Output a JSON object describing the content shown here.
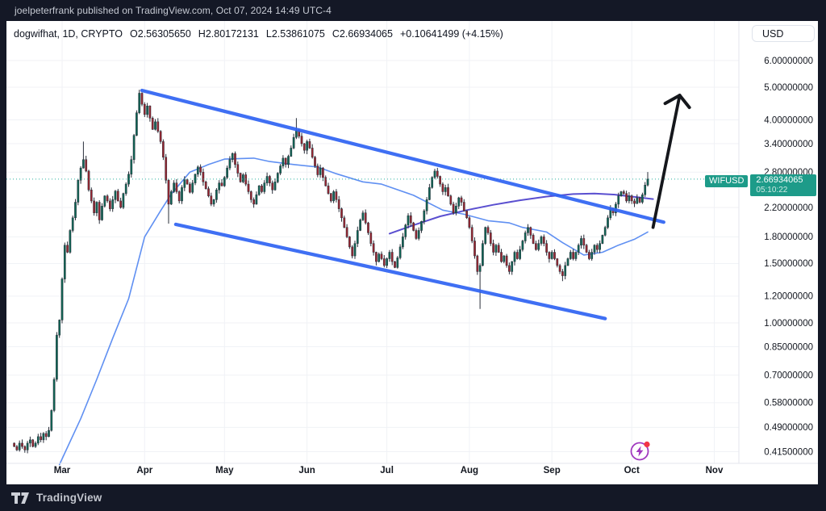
{
  "attribution_bar": {
    "text": "joelpeterfrank published on TradingView.com, Oct 07, 2024 14:49 UTC-4"
  },
  "header": {
    "symbol_text": "dogwifhat, 1D, CRYPTO",
    "ohlc": {
      "open": "O2.56305650",
      "high": "H2.80172131",
      "low": "L2.53861075",
      "close": "C2.66934065",
      "change": "+0.10641499 (+4.15%)"
    }
  },
  "currency_button": {
    "label": "USD"
  },
  "price_label": {
    "symbol": "WIFUSD",
    "price": "2.66934065",
    "countdown": "05:10:22"
  },
  "footer": {
    "brand": "TradingView"
  },
  "colors": {
    "frame": "#141826",
    "panel": "#ffffff",
    "grid": "#f0f2f6",
    "separator": "#e3e6ee",
    "axis_text": "#12161f",
    "up": "#0e6655",
    "down": "#9a2530",
    "wick": "#2a2f3a",
    "trendline": "#2f63f3",
    "ma_fast": "#6090f2",
    "ma_slow": "#5a4fd0",
    "price_line": "#2ab0a0",
    "label_bg": "#1d9b89",
    "arrow": "#15171c",
    "flash_purple": "#a13ac0",
    "flash_red": "#f23645"
  },
  "chart_data": {
    "type": "candlestick",
    "symbol": "WIFUSD",
    "timeframe": "1D",
    "scale": "logarithmic",
    "grid": true,
    "y_axis": {
      "side": "right",
      "ticks": [
        {
          "label": "6.00000000",
          "value": 6.0
        },
        {
          "label": "5.00000000",
          "value": 5.0
        },
        {
          "label": "4.00000000",
          "value": 4.0
        },
        {
          "label": "3.40000000",
          "value": 3.4
        },
        {
          "label": "2.80000000",
          "value": 2.8
        },
        {
          "label": "2.20000000",
          "value": 2.2
        },
        {
          "label": "1.80000000",
          "value": 1.8
        },
        {
          "label": "1.50000000",
          "value": 1.5
        },
        {
          "label": "1.20000000",
          "value": 1.2
        },
        {
          "label": "1.00000000",
          "value": 1.0
        },
        {
          "label": "0.85000000",
          "value": 0.85
        },
        {
          "label": "0.70000000",
          "value": 0.7
        },
        {
          "label": "0.58000000",
          "value": 0.58
        },
        {
          "label": "0.49000000",
          "value": 0.49
        },
        {
          "label": "0.41500000",
          "value": 0.415
        }
      ]
    },
    "x_axis": {
      "months": [
        {
          "label": "Mar",
          "idx": 18
        },
        {
          "label": "Apr",
          "idx": 49
        },
        {
          "label": "May",
          "idx": 79
        },
        {
          "label": "Jun",
          "idx": 110
        },
        {
          "label": "Jul",
          "idx": 140
        },
        {
          "label": "Aug",
          "idx": 171
        },
        {
          "label": "Sep",
          "idx": 202
        },
        {
          "label": "Oct",
          "idx": 232
        },
        {
          "label": "Nov",
          "idx": 263
        }
      ]
    },
    "last_ohlc": {
      "open": 2.5630565,
      "high": 2.80172131,
      "low": 2.53861075,
      "close": 2.66934065,
      "change": 0.10641499,
      "change_pct": 4.15
    },
    "price_line_value": 2.66934065,
    "closes": [
      0.43,
      0.42,
      0.44,
      0.43,
      0.42,
      0.44,
      0.45,
      0.43,
      0.44,
      0.46,
      0.45,
      0.47,
      0.46,
      0.48,
      0.55,
      0.68,
      0.92,
      1.02,
      1.35,
      1.7,
      1.62,
      1.88,
      2.05,
      2.28,
      2.65,
      2.88,
      3.05,
      2.82,
      2.48,
      2.3,
      2.12,
      2.28,
      2.02,
      2.22,
      2.38,
      2.3,
      2.18,
      2.32,
      2.46,
      2.3,
      2.2,
      2.42,
      2.58,
      2.76,
      3.05,
      3.6,
      4.2,
      4.8,
      4.45,
      4.15,
      4.4,
      4.05,
      3.75,
      3.95,
      3.7,
      3.45,
      3.1,
      2.65,
      2.25,
      2.45,
      2.6,
      2.45,
      2.3,
      2.52,
      2.66,
      2.58,
      2.44,
      2.6,
      2.76,
      2.9,
      2.8,
      2.62,
      2.5,
      2.38,
      2.25,
      2.32,
      2.48,
      2.6,
      2.55,
      2.7,
      2.88,
      3.05,
      3.18,
      2.95,
      2.78,
      2.62,
      2.75,
      2.58,
      2.45,
      2.32,
      2.25,
      2.4,
      2.55,
      2.45,
      2.6,
      2.72,
      2.6,
      2.48,
      2.62,
      2.78,
      2.92,
      3.08,
      2.95,
      3.12,
      3.3,
      3.55,
      3.72,
      3.58,
      3.4,
      3.25,
      3.45,
      3.3,
      3.1,
      2.92,
      2.75,
      2.88,
      2.7,
      2.55,
      2.42,
      2.3,
      2.45,
      2.32,
      2.18,
      2.05,
      1.92,
      1.8,
      1.68,
      1.58,
      1.72,
      1.88,
      2.02,
      2.12,
      1.98,
      1.85,
      1.72,
      1.62,
      1.52,
      1.6,
      1.55,
      1.48,
      1.55,
      1.62,
      1.52,
      1.46,
      1.56,
      1.68,
      1.8,
      1.95,
      2.08,
      1.98,
      1.88,
      1.78,
      1.88,
      2.0,
      2.15,
      2.32,
      2.52,
      2.7,
      2.82,
      2.72,
      2.58,
      2.45,
      2.52,
      2.38,
      2.25,
      2.12,
      2.22,
      2.35,
      2.28,
      2.15,
      2.05,
      1.92,
      1.75,
      1.58,
      1.42,
      1.48,
      1.72,
      1.92,
      1.85,
      1.72,
      1.62,
      1.7,
      1.62,
      1.52,
      1.58,
      1.48,
      1.42,
      1.52,
      1.62,
      1.55,
      1.65,
      1.75,
      1.85,
      1.92,
      1.82,
      1.72,
      1.65,
      1.72,
      1.8,
      1.72,
      1.62,
      1.55,
      1.62,
      1.55,
      1.48,
      1.42,
      1.38,
      1.48,
      1.55,
      1.62,
      1.55,
      1.62,
      1.7,
      1.78,
      1.7,
      1.62,
      1.55,
      1.62,
      1.7,
      1.65,
      1.72,
      1.82,
      1.92,
      2.05,
      2.18,
      2.12,
      2.25,
      2.38,
      2.45,
      2.42,
      2.3,
      2.38,
      2.3,
      2.26,
      2.35,
      2.28,
      2.4,
      2.563,
      2.66934065
    ],
    "wick_overrides": {
      "26": {
        "high": 3.45
      },
      "58": {
        "low": 1.97
      },
      "106": {
        "high": 4.05
      },
      "175": {
        "low": 1.1
      },
      "206": {
        "low": 1.33
      },
      "238": {
        "high": 2.80172131,
        "low": 2.53861075
      }
    },
    "ma_fast_points": [
      [
        17,
        0.38
      ],
      [
        25,
        0.52
      ],
      [
        31,
        0.68
      ],
      [
        37,
        0.9
      ],
      [
        43,
        1.18
      ],
      [
        49,
        1.8
      ],
      [
        55,
        2.15
      ],
      [
        59,
        2.41
      ],
      [
        66,
        2.8
      ],
      [
        73,
        2.95
      ],
      [
        79,
        3.06
      ],
      [
        90,
        3.08
      ],
      [
        96,
        3.01
      ],
      [
        105,
        2.95
      ],
      [
        114,
        2.9
      ],
      [
        121,
        2.77
      ],
      [
        131,
        2.62
      ],
      [
        138,
        2.58
      ],
      [
        150,
        2.39
      ],
      [
        161,
        2.16
      ],
      [
        169,
        2.1
      ],
      [
        178,
        2.01
      ],
      [
        186,
        1.98
      ],
      [
        191,
        1.92
      ],
      [
        200,
        1.86
      ],
      [
        206,
        1.73
      ],
      [
        214,
        1.59
      ],
      [
        221,
        1.62
      ],
      [
        227,
        1.7
      ],
      [
        233,
        1.77
      ],
      [
        238,
        1.86
      ]
    ],
    "ma_slow_points": [
      [
        141,
        1.84
      ],
      [
        150,
        1.95
      ],
      [
        160,
        2.07
      ],
      [
        170,
        2.16
      ],
      [
        180,
        2.24
      ],
      [
        190,
        2.31
      ],
      [
        200,
        2.37
      ],
      [
        210,
        2.41
      ],
      [
        218,
        2.42
      ],
      [
        226,
        2.4
      ],
      [
        234,
        2.36
      ],
      [
        240,
        2.33
      ]
    ],
    "trendlines": {
      "upper": [
        [
          48,
          4.89
        ],
        [
          244,
          1.99
        ]
      ],
      "lower": [
        [
          60.7,
          1.96
        ],
        [
          222,
          1.03
        ]
      ]
    },
    "arrow": {
      "from": [
        240,
        1.92
      ],
      "to": [
        250,
        4.73
      ]
    }
  }
}
